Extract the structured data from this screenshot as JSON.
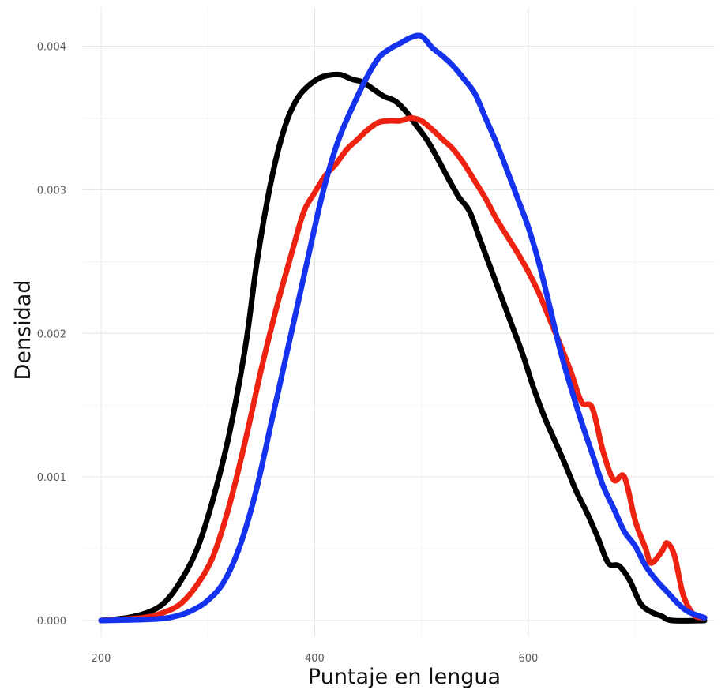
{
  "chart_data": {
    "type": "line",
    "title": "",
    "xlabel": "Puntaje en lengua",
    "ylabel": "Densidad",
    "xlim": [
      200,
      765
    ],
    "ylim": [
      0,
      0.00408
    ],
    "x_ticks": [
      200,
      400,
      600
    ],
    "x_minor_ticks": [
      300,
      500,
      700
    ],
    "y_ticks": [
      0.0,
      0.001,
      0.002,
      0.003,
      0.004
    ],
    "x_tick_labels": [
      "200",
      "400",
      "600"
    ],
    "y_tick_labels": [
      "0.000",
      "0.001",
      "0.002",
      "0.003",
      "0.004"
    ],
    "grid": true,
    "legend": "none",
    "series": [
      {
        "color": "#000000",
        "points": [
          [
            200,
            0
          ],
          [
            225,
            2e-05
          ],
          [
            245,
            6e-05
          ],
          [
            260,
            0.00013
          ],
          [
            275,
            0.00028
          ],
          [
            290,
            0.0005
          ],
          [
            305,
            0.00085
          ],
          [
            320,
            0.0013
          ],
          [
            335,
            0.0019
          ],
          [
            345,
            0.00245
          ],
          [
            355,
            0.0029
          ],
          [
            365,
            0.00325
          ],
          [
            375,
            0.0035
          ],
          [
            385,
            0.00365
          ],
          [
            395,
            0.00373
          ],
          [
            405,
            0.00378
          ],
          [
            415,
            0.0038
          ],
          [
            425,
            0.0038
          ],
          [
            435,
            0.00377
          ],
          [
            445,
            0.00375
          ],
          [
            455,
            0.0037
          ],
          [
            465,
            0.00365
          ],
          [
            475,
            0.00362
          ],
          [
            485,
            0.00355
          ],
          [
            495,
            0.00345
          ],
          [
            505,
            0.00335
          ],
          [
            515,
            0.00322
          ],
          [
            525,
            0.00308
          ],
          [
            535,
            0.00295
          ],
          [
            545,
            0.00285
          ],
          [
            555,
            0.00265
          ],
          [
            565,
            0.00245
          ],
          [
            575,
            0.00225
          ],
          [
            585,
            0.00205
          ],
          [
            595,
            0.00185
          ],
          [
            605,
            0.00162
          ],
          [
            615,
            0.00142
          ],
          [
            625,
            0.00125
          ],
          [
            635,
            0.00108
          ],
          [
            645,
            0.0009
          ],
          [
            655,
            0.00075
          ],
          [
            665,
            0.00058
          ],
          [
            675,
            0.0004
          ],
          [
            685,
            0.00038
          ],
          [
            695,
            0.00028
          ],
          [
            705,
            0.00012
          ],
          [
            715,
            6e-05
          ],
          [
            725,
            3e-05
          ],
          [
            735,
            0
          ],
          [
            765,
            0
          ]
        ]
      },
      {
        "color": "#ee2211",
        "points": [
          [
            200,
            0
          ],
          [
            240,
            2e-05
          ],
          [
            260,
            6e-05
          ],
          [
            275,
            0.00012
          ],
          [
            290,
            0.00025
          ],
          [
            305,
            0.00045
          ],
          [
            320,
            0.0008
          ],
          [
            335,
            0.00125
          ],
          [
            350,
            0.00175
          ],
          [
            365,
            0.0022
          ],
          [
            380,
            0.0026
          ],
          [
            390,
            0.00285
          ],
          [
            400,
            0.00298
          ],
          [
            410,
            0.0031
          ],
          [
            420,
            0.00318
          ],
          [
            430,
            0.00328
          ],
          [
            440,
            0.00335
          ],
          [
            450,
            0.00342
          ],
          [
            460,
            0.00347
          ],
          [
            470,
            0.00348
          ],
          [
            480,
            0.00348
          ],
          [
            490,
            0.0035
          ],
          [
            500,
            0.00348
          ],
          [
            510,
            0.00342
          ],
          [
            520,
            0.00335
          ],
          [
            530,
            0.00328
          ],
          [
            540,
            0.00318
          ],
          [
            550,
            0.00306
          ],
          [
            560,
            0.00294
          ],
          [
            570,
            0.0028
          ],
          [
            580,
            0.00268
          ],
          [
            590,
            0.00256
          ],
          [
            600,
            0.00243
          ],
          [
            610,
            0.00228
          ],
          [
            620,
            0.0021
          ],
          [
            630,
            0.00192
          ],
          [
            640,
            0.00173
          ],
          [
            650,
            0.00152
          ],
          [
            660,
            0.00148
          ],
          [
            670,
            0.00118
          ],
          [
            680,
            0.00098
          ],
          [
            690,
            0.001
          ],
          [
            700,
            0.0007
          ],
          [
            710,
            0.0005
          ],
          [
            715,
            0.0004
          ],
          [
            725,
            0.00048
          ],
          [
            730,
            0.00054
          ],
          [
            737,
            0.00045
          ],
          [
            745,
            0.00018
          ],
          [
            755,
            4e-05
          ],
          [
            765,
            2e-05
          ]
        ]
      },
      {
        "color": "#1533ee",
        "points": [
          [
            200,
            0
          ],
          [
            250,
            1e-05
          ],
          [
            270,
            3e-05
          ],
          [
            285,
            7e-05
          ],
          [
            300,
            0.00014
          ],
          [
            315,
            0.00027
          ],
          [
            330,
            0.00052
          ],
          [
            345,
            0.0009
          ],
          [
            360,
            0.0014
          ],
          [
            375,
            0.0019
          ],
          [
            390,
            0.0024
          ],
          [
            405,
            0.0029
          ],
          [
            415,
            0.00318
          ],
          [
            425,
            0.0034
          ],
          [
            440,
            0.00365
          ],
          [
            450,
            0.0038
          ],
          [
            460,
            0.00392
          ],
          [
            470,
            0.00398
          ],
          [
            480,
            0.00402
          ],
          [
            490,
            0.00406
          ],
          [
            500,
            0.00407
          ],
          [
            510,
            0.00399
          ],
          [
            520,
            0.00393
          ],
          [
            530,
            0.00386
          ],
          [
            540,
            0.00377
          ],
          [
            550,
            0.00367
          ],
          [
            560,
            0.0035
          ],
          [
            570,
            0.00333
          ],
          [
            580,
            0.00314
          ],
          [
            590,
            0.00294
          ],
          [
            600,
            0.00274
          ],
          [
            610,
            0.00249
          ],
          [
            620,
            0.00219
          ],
          [
            630,
            0.00188
          ],
          [
            640,
            0.00162
          ],
          [
            650,
            0.00138
          ],
          [
            660,
            0.00116
          ],
          [
            670,
            0.00094
          ],
          [
            680,
            0.00078
          ],
          [
            690,
            0.00062
          ],
          [
            700,
            0.00052
          ],
          [
            710,
            0.00038
          ],
          [
            720,
            0.00028
          ],
          [
            730,
            0.0002
          ],
          [
            740,
            0.00012
          ],
          [
            750,
            6e-05
          ],
          [
            765,
            2e-05
          ]
        ]
      }
    ]
  }
}
